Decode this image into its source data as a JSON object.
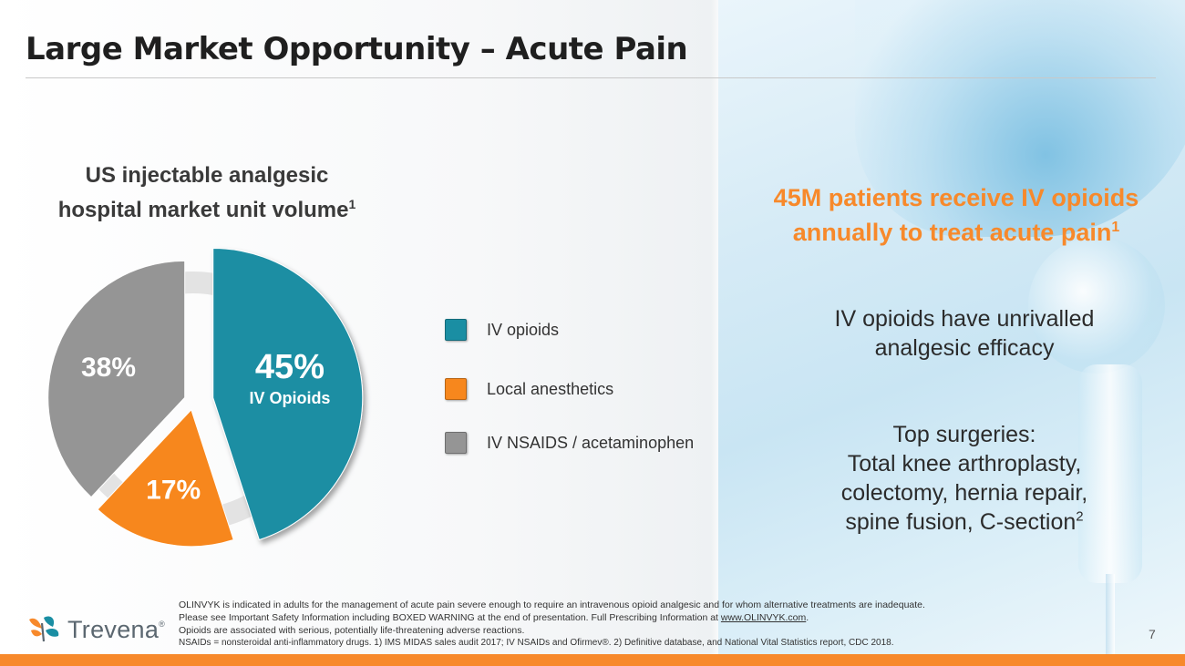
{
  "slide": {
    "title": "Large Market Opportunity – Acute Pain",
    "page_number": "7"
  },
  "chart_heading": {
    "line1": "US injectable analgesic",
    "line2": "hospital market unit volume",
    "footnote": "1"
  },
  "chart_data": {
    "type": "pie",
    "title": "US injectable analgesic hospital market unit volume",
    "categories": [
      "IV opioids",
      "Local anesthetics",
      "IV NSAIDS / acetaminophen"
    ],
    "values": [
      45,
      17,
      38
    ],
    "labels": [
      "45%",
      "17%",
      "38%"
    ],
    "highlight_label": "IV Opioids",
    "exploded": "IV opioids",
    "colors": [
      "#1a8ea3",
      "#f7871d",
      "#959595"
    ],
    "legend_position": "right"
  },
  "legend": [
    {
      "label": "IV opioids",
      "color": "#1a8ea3"
    },
    {
      "label": "Local anesthetics",
      "color": "#f7871d"
    },
    {
      "label": "IV NSAIDS / acetaminophen",
      "color": "#959595"
    }
  ],
  "callout": {
    "line1": "45M patients receive IV opioids",
    "line2": "annually to treat acute pain",
    "footnote": "1"
  },
  "points": {
    "efficacy": {
      "line1": "IV opioids have unrivalled",
      "line2": "analgesic efficacy"
    },
    "surgeries": {
      "line1": "Top surgeries:",
      "line2": "Total knee arthroplasty,",
      "line3": "colectomy, hernia repair,",
      "line4": "spine fusion, C-section",
      "footnote": "2"
    }
  },
  "footer": {
    "line1": "OLINVYK is indicated in adults for the management of acute pain severe enough to require an intravenous opioid analgesic and for whom alternative treatments are inadequate.",
    "line2_prefix": "Please see Important Safety Information including BOXED WARNING at the end of presentation. Full Prescribing Information at",
    "line2_link": "www.OLINVYK.com",
    "line2_suffix": ".",
    "line3": "Opioids are associated with serious, potentially life-threatening adverse reactions.",
    "line4": "NSAIDs = nonsteroidal anti-inflammatory drugs. 1) IMS MIDAS sales audit 2017; IV NSAIDs and Ofirmev®. 2) Definitive database, and National Vital Statistics report, CDC 2018."
  },
  "logo": {
    "word": "Trevena",
    "reg": "®",
    "icon": "trevena-butterfly-logo"
  },
  "colors": {
    "accent_orange": "#f7892b",
    "teal": "#1a8ea3",
    "grey": "#959595"
  }
}
